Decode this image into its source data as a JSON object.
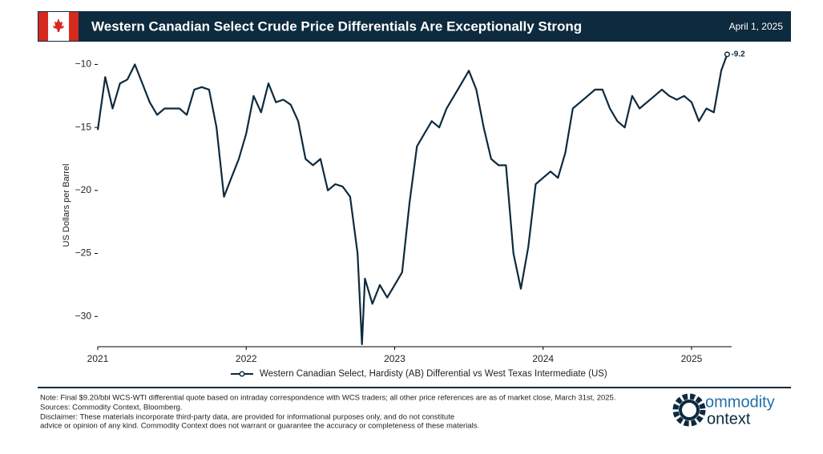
{
  "header": {
    "title": "Western Canadian Select Crude Price Differentials Are Exceptionally Strong",
    "date": "April 1, 2025"
  },
  "chart_data": {
    "type": "line",
    "y_label": "US Dollars per Barrel",
    "xlim": [
      2021,
      2025.27
    ],
    "xticks": [
      2021,
      2022,
      2023,
      2024,
      2025
    ],
    "ylim": [
      -32.4,
      -8.7
    ],
    "yticks": [
      {
        "value": -10,
        "label": "−10"
      },
      {
        "value": -15,
        "label": "−15"
      },
      {
        "value": -20,
        "label": "−20"
      },
      {
        "value": -25,
        "label": "−25"
      },
      {
        "value": -30,
        "label": "−30"
      }
    ],
    "last_label": "-9.2",
    "series": [
      {
        "name": "Western Canadian Select, Hardisty (AB) Differential vs West Texas Intermediate (US)",
        "color": "#0d2a3e",
        "x": [
          2021.0,
          2021.05,
          2021.1,
          2021.15,
          2021.2,
          2021.25,
          2021.3,
          2021.35,
          2021.4,
          2021.45,
          2021.5,
          2021.55,
          2021.6,
          2021.65,
          2021.7,
          2021.75,
          2021.8,
          2021.85,
          2021.9,
          2021.95,
          2022.0,
          2022.05,
          2022.1,
          2022.15,
          2022.2,
          2022.25,
          2022.3,
          2022.35,
          2022.4,
          2022.45,
          2022.5,
          2022.55,
          2022.6,
          2022.65,
          2022.7,
          2022.75,
          2022.78,
          2022.8,
          2022.85,
          2022.9,
          2022.95,
          2023.0,
          2023.05,
          2023.1,
          2023.15,
          2023.2,
          2023.25,
          2023.3,
          2023.35,
          2023.4,
          2023.45,
          2023.5,
          2023.55,
          2023.6,
          2023.65,
          2023.7,
          2023.75,
          2023.8,
          2023.85,
          2023.9,
          2023.95,
          2024.0,
          2024.05,
          2024.1,
          2024.15,
          2024.2,
          2024.25,
          2024.3,
          2024.35,
          2024.4,
          2024.45,
          2024.5,
          2024.55,
          2024.6,
          2024.65,
          2024.7,
          2024.75,
          2024.8,
          2024.85,
          2024.9,
          2024.95,
          2025.0,
          2025.05,
          2025.1,
          2025.15,
          2025.2,
          2025.24
        ],
        "values": [
          -15.2,
          -11.0,
          -13.5,
          -11.5,
          -11.2,
          -10.0,
          -11.5,
          -13.0,
          -14.0,
          -13.5,
          -13.5,
          -13.5,
          -14.0,
          -12.0,
          -11.8,
          -12.0,
          -15.0,
          -20.5,
          -19.0,
          -17.5,
          -15.5,
          -12.5,
          -13.8,
          -11.5,
          -13.0,
          -12.8,
          -13.2,
          -14.5,
          -17.5,
          -18.0,
          -17.5,
          -20.0,
          -19.5,
          -19.7,
          -20.5,
          -25.0,
          -32.2,
          -27.0,
          -29.0,
          -27.5,
          -28.5,
          -27.5,
          -26.5,
          -21.0,
          -16.5,
          -15.5,
          -14.5,
          -15.0,
          -13.5,
          -12.5,
          -11.5,
          -10.5,
          -12.0,
          -15.0,
          -17.5,
          -18.0,
          -18.0,
          -25.0,
          -27.8,
          -24.5,
          -19.5,
          -19.0,
          -18.5,
          -19.0,
          -17.0,
          -13.5,
          -13.0,
          -12.5,
          -12.0,
          -12.0,
          -13.5,
          -14.5,
          -15.0,
          -12.5,
          -13.5,
          -13.0,
          -12.5,
          -12.0,
          -12.5,
          -12.8,
          -12.5,
          -13.0,
          -14.5,
          -13.5,
          -13.8,
          -10.5,
          -9.2
        ]
      }
    ]
  },
  "footer": {
    "note": "Note: Final $9.20/bbl WCS-WTI differential quote based on intraday correspondence with WCS traders; all other price references are as of market close, March 31st, 2025.",
    "sources": "Sources: Commodity Context, Bloomberg.",
    "disclaimer1": "Disclaimer: These materials incorporate third-party data, are provided for informational purposes only, and do not constitute",
    "disclaimer2": "advice or opinion of any kind. Commodity Context does not warrant or guarantee the accuracy or completeness of these materials.",
    "logo_top": "ommodity",
    "logo_bottom": "ontext"
  }
}
